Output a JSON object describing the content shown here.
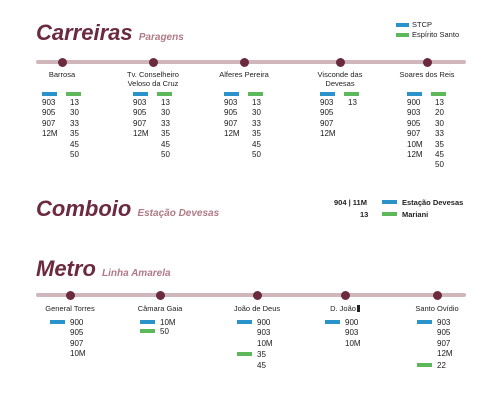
{
  "carreiras": {
    "title": "Carreiras",
    "subtitle": "Paragens",
    "legend": [
      {
        "label": "STCP",
        "color": "#2a93c9"
      },
      {
        "label": "Espírito Santo",
        "color": "#5db85b"
      }
    ],
    "stops": [
      {
        "name": "Barrosa",
        "stcp": [
          "903",
          "905",
          "907",
          "12M"
        ],
        "es": [
          "13",
          "30",
          "33",
          "35",
          "45",
          "50"
        ]
      },
      {
        "name": "Tv. Conselheiro\nVeloso da Cruz",
        "stcp": [
          "903",
          "905",
          "907",
          "12M"
        ],
        "es": [
          "13",
          "30",
          "33",
          "35",
          "45",
          "50"
        ]
      },
      {
        "name": "Alferes Pereira",
        "stcp": [
          "903",
          "905",
          "907",
          "12M"
        ],
        "es": [
          "13",
          "30",
          "33",
          "35",
          "45",
          "50"
        ]
      },
      {
        "name": "Visconde das\nDevesas",
        "stcp": [
          "903",
          "905",
          "907",
          "12M"
        ],
        "es": [
          "13"
        ]
      },
      {
        "name": "Soares dos Reis",
        "stcp": [
          "900",
          "903",
          "905",
          "907",
          "10M",
          "12M"
        ],
        "es": [
          "13",
          "20",
          "30",
          "33",
          "35",
          "45",
          "50"
        ]
      }
    ]
  },
  "comboio": {
    "title": "Comboio",
    "subtitle": "Estação Devesas",
    "rows": [
      {
        "codes": "904 | 11M",
        "station": "Estação Devesas",
        "color": "#2a93c9"
      },
      {
        "codes": "13",
        "station": "Mariani",
        "color": "#5db85b"
      }
    ]
  },
  "metro": {
    "title": "Metro",
    "subtitle": "Linha Amarela",
    "stops": [
      {
        "name": "General Torres",
        "stcp": [
          "900",
          "905",
          "907",
          "10M"
        ],
        "es": []
      },
      {
        "name": "Câmara Gaia",
        "stcp": [
          "10M"
        ],
        "es": [
          "50"
        ]
      },
      {
        "name": "João de Deus",
        "stcp": [
          "900",
          "903",
          "10M"
        ],
        "es": [
          "35",
          "45"
        ]
      },
      {
        "name": "D. João",
        "stcp": [
          "900",
          "903",
          "10M"
        ],
        "es": []
      },
      {
        "name": "Santo Ovídio",
        "stcp": [
          "903",
          "905",
          "907",
          "12M"
        ],
        "es": [
          "22"
        ]
      }
    ]
  },
  "colors": {
    "accent": "#6b2a3e",
    "line": "#cfb6bb",
    "stcp": "#2a93c9",
    "es": "#5db85b"
  }
}
